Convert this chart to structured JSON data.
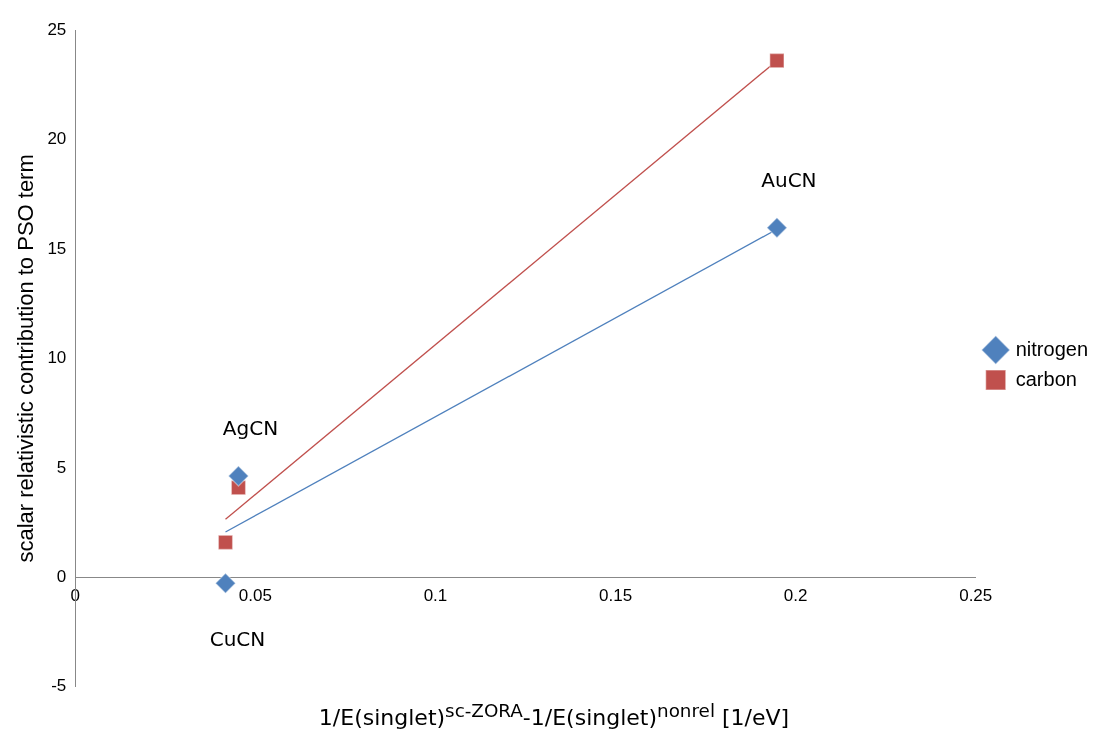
{
  "chart_data": {
    "type": "scatter",
    "xlabel": "1/E(singlet)$^{sc-ZORA}$-1/E(singlet)$^{nonrel}$ [1/eV]",
    "ylabel": "scalar relativistic contribution to PSO term",
    "series": [
      {
        "name": "nitrogen",
        "color": "#4f81bd",
        "marker": "diamond",
        "x": [
          0.0417,
          0.0453,
          0.1948
        ],
        "values": [
          -0.27,
          4.63,
          15.97
        ]
      },
      {
        "name": "carbon",
        "color": "#c0504d",
        "marker": "square",
        "x": [
          0.0417,
          0.0453,
          0.1948
        ],
        "values": [
          1.6,
          4.1,
          23.6
        ]
      },
      {
        "type": "line",
        "color": "#4f81bd",
        "marker": "none",
        "x": [
          0.0417,
          0.1948
        ],
        "values": [
          2.07,
          15.9
        ]
      },
      {
        "type": "line",
        "color": "#c0504d",
        "marker": "none",
        "x": [
          0.0417,
          0.1948
        ],
        "values": [
          2.65,
          23.6
        ]
      }
    ],
    "annotations": [
      {
        "text": "AgCN",
        "x": 0.0453,
        "y": 4.63
      },
      {
        "text": "CuCN",
        "x": 0.0417,
        "y": -0.27
      },
      {
        "text": "AuCN",
        "x": 0.1948,
        "y": 15.97
      }
    ],
    "xlim": [
      0,
      0.25
    ],
    "xticks": [
      0,
      0.05,
      0.1,
      0.15,
      0.2,
      0.25
    ],
    "ylim": [
      -5,
      25
    ],
    "yticks": [
      -5,
      0,
      5,
      10,
      15,
      20,
      25
    ],
    "grid": false,
    "legend": "right"
  }
}
